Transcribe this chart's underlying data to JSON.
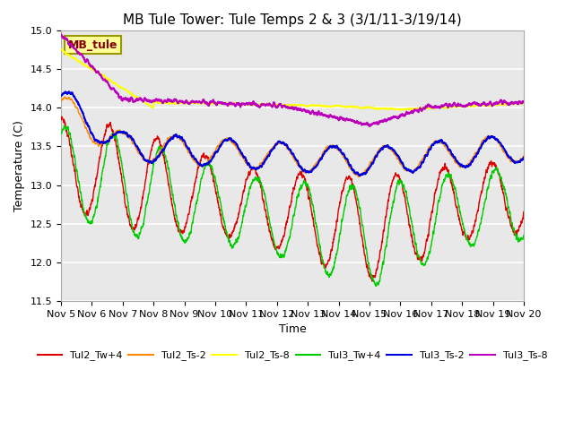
{
  "title": "MB Tule Tower: Tule Temps 2 & 3 (3/1/11-3/19/14)",
  "xlabel": "Time",
  "ylabel": "Temperature (C)",
  "ylim": [
    11.5,
    15.0
  ],
  "xlim": [
    0,
    15
  ],
  "xtick_labels": [
    "Nov 5",
    "Nov 6",
    "Nov 7",
    "Nov 8",
    "Nov 9",
    "Nov 10",
    "Nov 11",
    "Nov 12",
    "Nov 13",
    "Nov 14",
    "Nov 15",
    "Nov 16",
    "Nov 17",
    "Nov 18",
    "Nov 19",
    "Nov 20"
  ],
  "annotation_text": "MB_tule",
  "plot_bg_color": "#e8e8e8",
  "series": {
    "Tul2_Tw+4": {
      "color": "#dd0000",
      "lw": 1.0
    },
    "Tul2_Ts-2": {
      "color": "#ff8800",
      "lw": 1.0
    },
    "Tul2_Ts-8": {
      "color": "#ffff00",
      "lw": 1.5
    },
    "Tul3_Tw+4": {
      "color": "#00cc00",
      "lw": 1.0
    },
    "Tul3_Ts-2": {
      "color": "#0000dd",
      "lw": 1.5
    },
    "Tul3_Ts-8": {
      "color": "#bb00bb",
      "lw": 1.5
    }
  },
  "title_fontsize": 11,
  "axis_fontsize": 9,
  "tick_fontsize": 8
}
